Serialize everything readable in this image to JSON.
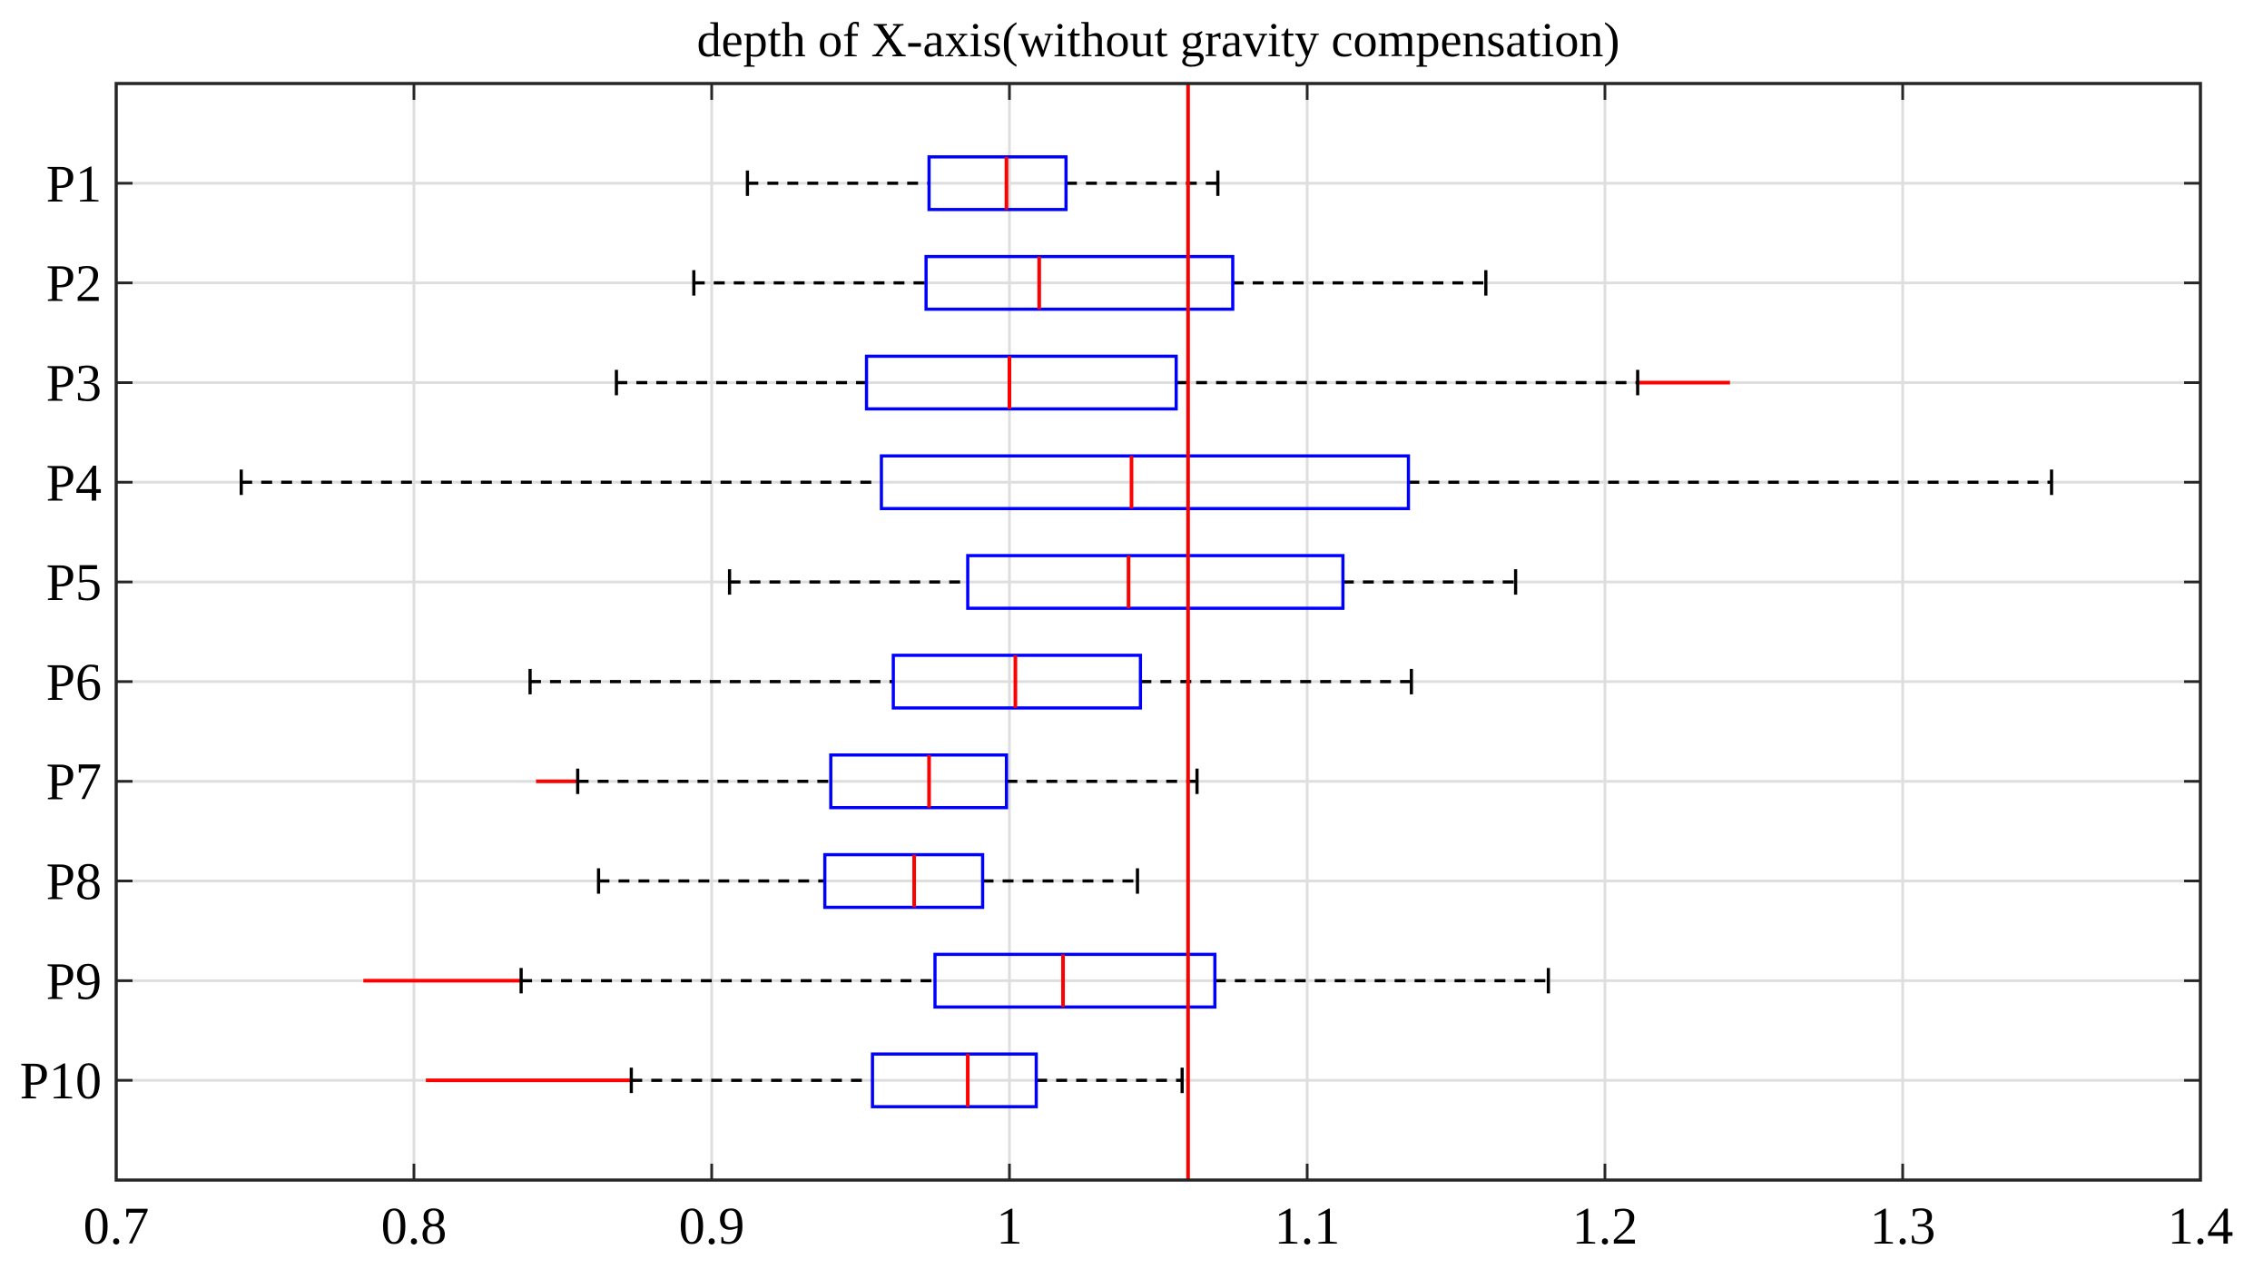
{
  "chart_data": {
    "type": "boxplot",
    "orientation": "horizontal",
    "title": "depth of X-axis(without gravity compensation)",
    "xlabel": "",
    "ylabel": "",
    "xlim": [
      0.7,
      1.4
    ],
    "x_ticks": [
      0.7,
      0.8,
      0.9,
      1.0,
      1.1,
      1.2,
      1.3,
      1.4
    ],
    "x_tick_labels": [
      "0.7",
      "0.8",
      "0.9",
      "1",
      "1.1",
      "1.2",
      "1.3",
      "1.4"
    ],
    "grid": true,
    "reference_line": {
      "x": 1.06,
      "color": "#ff0000"
    },
    "colors": {
      "box": "#0000ff",
      "median": "#ff0000",
      "whisker": "#000000",
      "outlier": "#ff0000",
      "grid": "#dedede",
      "axes": "#262626"
    },
    "categories": [
      "P1",
      "P2",
      "P3",
      "P4",
      "P5",
      "P6",
      "P7",
      "P8",
      "P9",
      "P10"
    ],
    "series": [
      {
        "name": "P1",
        "whisker_low": 0.912,
        "q1": 0.973,
        "median": 0.999,
        "q3": 1.019,
        "whisker_high": 1.07,
        "outliers": []
      },
      {
        "name": "P2",
        "whisker_low": 0.894,
        "q1": 0.972,
        "median": 1.01,
        "q3": 1.075,
        "whisker_high": 1.16,
        "outliers": []
      },
      {
        "name": "P3",
        "whisker_low": 0.868,
        "q1": 0.952,
        "median": 1.0,
        "q3": 1.056,
        "whisker_high": 1.211,
        "outliers": [
          1.211,
          1.242
        ]
      },
      {
        "name": "P4",
        "whisker_low": 0.742,
        "q1": 0.957,
        "median": 1.041,
        "q3": 1.134,
        "whisker_high": 1.35,
        "outliers": []
      },
      {
        "name": "P5",
        "whisker_low": 0.906,
        "q1": 0.986,
        "median": 1.04,
        "q3": 1.112,
        "whisker_high": 1.17,
        "outliers": []
      },
      {
        "name": "P6",
        "whisker_low": 0.839,
        "q1": 0.961,
        "median": 1.002,
        "q3": 1.044,
        "whisker_high": 1.135,
        "outliers": []
      },
      {
        "name": "P7",
        "whisker_low": 0.855,
        "q1": 0.94,
        "median": 0.973,
        "q3": 0.999,
        "whisker_high": 1.063,
        "outliers": [
          0.841,
          0.855
        ]
      },
      {
        "name": "P8",
        "whisker_low": 0.862,
        "q1": 0.938,
        "median": 0.968,
        "q3": 0.991,
        "whisker_high": 1.043,
        "outliers": []
      },
      {
        "name": "P9",
        "whisker_low": 0.836,
        "q1": 0.975,
        "median": 1.018,
        "q3": 1.069,
        "whisker_high": 1.181,
        "outliers": [
          0.783,
          0.836
        ]
      },
      {
        "name": "P10",
        "whisker_low": 0.873,
        "q1": 0.954,
        "median": 0.986,
        "q3": 1.009,
        "whisker_high": 1.058,
        "outliers": [
          0.804,
          0.873
        ]
      }
    ]
  }
}
